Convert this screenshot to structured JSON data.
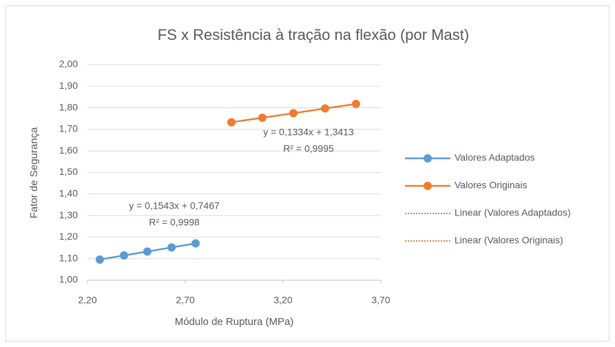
{
  "chart_data": {
    "type": "scatter",
    "title": "FS x Resistência à tração na flexão (por Mast)",
    "x_label": "Módulo de Ruptura (MPa)",
    "y_label": "Fator de Segurança",
    "xlim": [
      2.2,
      3.7
    ],
    "xticks": [
      {
        "value": 2.2,
        "label": "2,20"
      },
      {
        "value": 2.7,
        "label": "2,70"
      },
      {
        "value": 3.2,
        "label": "3,20"
      },
      {
        "value": 3.7,
        "label": "3,70"
      }
    ],
    "ylim": [
      1.0,
      2.0
    ],
    "yticks": [
      {
        "value": 1.0,
        "label": "1,00"
      },
      {
        "value": 1.1,
        "label": "1,10"
      },
      {
        "value": 1.2,
        "label": "1,20"
      },
      {
        "value": 1.3,
        "label": "1,30"
      },
      {
        "value": 1.4,
        "label": "1,40"
      },
      {
        "value": 1.5,
        "label": "1,50"
      },
      {
        "value": 1.6,
        "label": "1,60"
      },
      {
        "value": 1.7,
        "label": "1,70"
      },
      {
        "value": 1.8,
        "label": "1,80"
      },
      {
        "value": 1.9,
        "label": "1,90"
      },
      {
        "value": 2.0,
        "label": "2,00"
      }
    ],
    "grid": true,
    "legend": "right",
    "series": [
      {
        "name": "Valores Adaptados",
        "color": "#5b9bd5",
        "x": [
          2.263,
          2.387,
          2.506,
          2.63,
          2.753
        ],
        "values": [
          1.096,
          1.115,
          1.133,
          1.152,
          1.171
        ]
      },
      {
        "name": "Valores Originais",
        "color": "#ed7d31",
        "x": [
          2.936,
          3.094,
          3.253,
          3.415,
          3.573
        ],
        "values": [
          1.733,
          1.754,
          1.775,
          1.797,
          1.818
        ]
      },
      {
        "name": "Linear (Valores Adaptados)",
        "color": "#5b9bd5",
        "style": "dotted",
        "trend_of": 0
      },
      {
        "name": "Linear (Valores Originais)",
        "color": "#ed7d31",
        "style": "dotted",
        "trend_of": 1
      }
    ],
    "annotations": [
      {
        "lines": [
          "y = 0,1543x + 0,7467",
          "R² = 0,9998"
        ],
        "series": 0
      },
      {
        "lines": [
          "y = 0,1334x + 1,3413",
          "R² = 0,9995"
        ],
        "series": 1
      }
    ]
  }
}
